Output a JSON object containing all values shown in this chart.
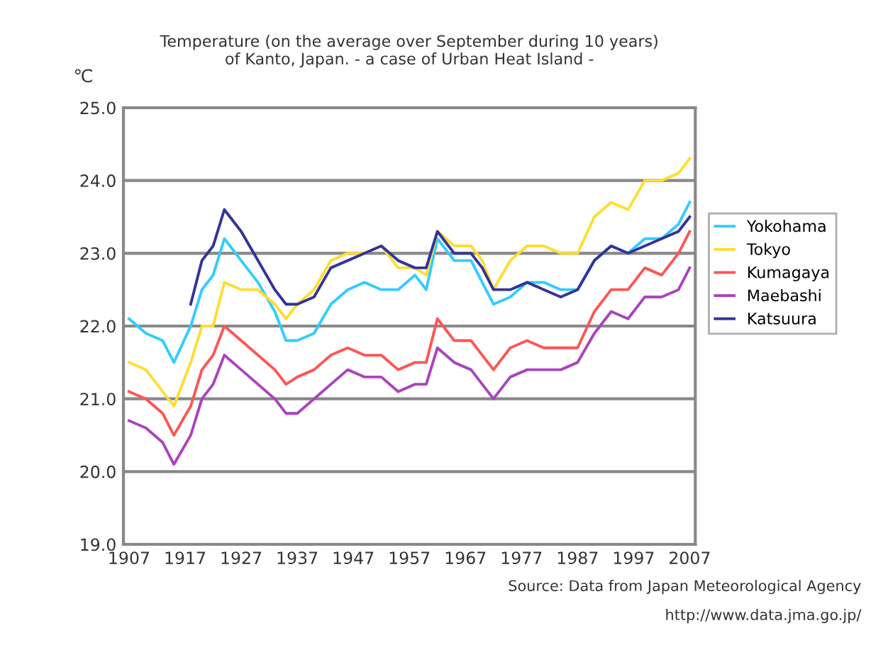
{
  "chart_data": {
    "type": "line",
    "title": "Temperature (on the average over September during 10 years)\nof Kanto, Japan. - a case of Urban Heat Island -",
    "ylabel": "℃",
    "x": [
      1907,
      1910,
      1913,
      1915,
      1918,
      1920,
      1922,
      1924,
      1927,
      1930,
      1933,
      1935,
      1937,
      1940,
      1943,
      1946,
      1949,
      1952,
      1955,
      1958,
      1960,
      1962,
      1965,
      1968,
      1970,
      1972,
      1975,
      1978,
      1981,
      1984,
      1987,
      1990,
      1993,
      1996,
      1999,
      2002,
      2005,
      2007
    ],
    "series": [
      {
        "name": "Yokohama",
        "color": "#33ccff",
        "values": [
          22.1,
          21.9,
          21.8,
          21.5,
          22.0,
          22.5,
          22.7,
          23.2,
          22.9,
          22.6,
          22.2,
          21.8,
          21.8,
          21.9,
          22.3,
          22.5,
          22.6,
          22.5,
          22.5,
          22.7,
          22.5,
          23.2,
          22.9,
          22.9,
          22.6,
          22.3,
          22.4,
          22.6,
          22.6,
          22.5,
          22.5,
          22.9,
          23.1,
          23.0,
          23.2,
          23.2,
          23.4,
          23.7
        ]
      },
      {
        "name": "Tokyo",
        "color": "#ffdd33",
        "values": [
          21.5,
          21.4,
          21.1,
          20.9,
          21.5,
          22.0,
          22.0,
          22.6,
          22.5,
          22.5,
          22.3,
          22.1,
          22.3,
          22.5,
          22.9,
          23.0,
          23.0,
          23.1,
          22.8,
          22.8,
          22.7,
          23.3,
          23.1,
          23.1,
          22.9,
          22.5,
          22.9,
          23.1,
          23.1,
          23.0,
          23.0,
          23.5,
          23.7,
          23.6,
          24.0,
          24.0,
          24.1,
          24.3
        ]
      },
      {
        "name": "Kumagaya",
        "color": "#ff5555",
        "values": [
          21.1,
          21.0,
          20.8,
          20.5,
          20.9,
          21.4,
          21.6,
          22.0,
          21.8,
          21.6,
          21.4,
          21.2,
          21.3,
          21.4,
          21.6,
          21.7,
          21.6,
          21.6,
          21.4,
          21.5,
          21.5,
          22.1,
          21.8,
          21.8,
          21.6,
          21.4,
          21.7,
          21.8,
          21.7,
          21.7,
          21.7,
          22.2,
          22.5,
          22.5,
          22.8,
          22.7,
          23.0,
          23.3
        ]
      },
      {
        "name": "Maebashi",
        "color": "#aa44bb",
        "values": [
          20.7,
          20.6,
          20.4,
          20.1,
          20.5,
          21.0,
          21.2,
          21.6,
          21.4,
          21.2,
          21.0,
          20.8,
          20.8,
          21.0,
          21.2,
          21.4,
          21.3,
          21.3,
          21.1,
          21.2,
          21.2,
          21.7,
          21.5,
          21.4,
          21.2,
          21.0,
          21.3,
          21.4,
          21.4,
          21.4,
          21.5,
          21.9,
          22.2,
          22.1,
          22.4,
          22.4,
          22.5,
          22.8
        ]
      },
      {
        "name": "Katsuura",
        "color": "#333399",
        "values": [
          null,
          null,
          null,
          null,
          22.3,
          22.9,
          23.1,
          23.6,
          23.3,
          22.9,
          22.5,
          22.3,
          22.3,
          22.4,
          22.8,
          22.9,
          23.0,
          23.1,
          22.9,
          22.8,
          22.8,
          23.3,
          23.0,
          23.0,
          22.8,
          22.5,
          22.5,
          22.6,
          22.5,
          22.4,
          22.5,
          22.9,
          23.1,
          23.0,
          23.1,
          23.2,
          23.3,
          23.5
        ]
      }
    ],
    "xlim": [
      1906,
      2008
    ],
    "xticks": [
      1907,
      1917,
      1927,
      1937,
      1947,
      1957,
      1967,
      1977,
      1987,
      1997,
      2007
    ],
    "ylim": [
      19,
      25
    ],
    "yticks": [
      {
        "value": 19,
        "label": "19.0"
      },
      {
        "value": 20,
        "label": "20.0"
      },
      {
        "value": 21,
        "label": "21.0"
      },
      {
        "value": 22,
        "label": "22.0"
      },
      {
        "value": 23,
        "label": "23.0"
      },
      {
        "value": 24,
        "label": "24.0"
      },
      {
        "value": 25,
        "label": "25.0"
      }
    ],
    "grid": "y",
    "legend": "right",
    "marker": "none",
    "line_style": "solid",
    "annotations": [
      "Source: Data from Japan Meteorological Agency",
      "http://www.data.jma.go.jp/"
    ]
  }
}
